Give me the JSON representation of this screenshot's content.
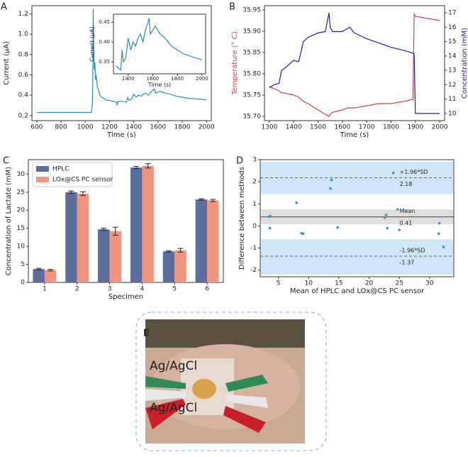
{
  "chart_data": [
    {
      "type": "line",
      "panel": "A",
      "x_label": "Time (s)",
      "y_label": "Current (μA)",
      "xlim": [
        560,
        2040
      ],
      "xticks": [
        600,
        800,
        1000,
        1200,
        1400,
        1600,
        1800,
        2000
      ],
      "ylim": [
        0.15,
        1.28
      ],
      "yticks": [
        0.2,
        0.4,
        0.6,
        0.8,
        {
          "value": 1,
          "label": "1.0"
        },
        1.2
      ],
      "x": [
        600,
        700,
        800,
        900,
        1000,
        1050,
        1058,
        1062,
        1066,
        1070,
        1075,
        1080,
        1085,
        1090,
        1100,
        1110,
        1120,
        1140,
        1160,
        1180,
        1200,
        1230,
        1260,
        1262,
        1270,
        1300,
        1340,
        1350,
        1360,
        1380,
        1400,
        1420,
        1440,
        1460,
        1480,
        1500,
        1520,
        1540,
        1560,
        1570,
        1580,
        1600,
        1620,
        1640,
        1660,
        1700,
        1750,
        1800,
        1850,
        1900,
        1950,
        2000
      ],
      "series": [
        {
          "color": "#2b8cbe",
          "values": [
            0.23,
            0.23,
            0.23,
            0.23,
            0.23,
            0.23,
            0.3,
            0.5,
            1.25,
            0.8,
            0.65,
            0.72,
            0.55,
            0.6,
            0.48,
            0.45,
            0.4,
            0.38,
            0.36,
            0.35,
            0.35,
            0.34,
            0.33,
            0.3,
            0.34,
            0.34,
            0.33,
            0.38,
            0.35,
            0.36,
            0.41,
            0.38,
            0.4,
            0.39,
            0.41,
            0.42,
            0.4,
            0.43,
            0.45,
            0.46,
            0.42,
            0.43,
            0.44,
            0.43,
            0.42,
            0.41,
            0.39,
            0.38,
            0.37,
            0.365,
            0.36,
            0.355
          ]
        }
      ]
    },
    {
      "type": "line",
      "x_label": "Time (s)",
      "y_label": "Current (μA)",
      "xlim": [
        1280,
        2030
      ],
      "xticks": [
        1400,
        1600,
        1800,
        2000
      ],
      "ylim": [
        0.32,
        0.47
      ],
      "yticks": [
        0.35,
        {
          "value": 0.4,
          "label": "0.40"
        },
        0.45
      ],
      "x": [
        1300,
        1320,
        1340,
        1350,
        1360,
        1380,
        1400,
        1420,
        1440,
        1460,
        1480,
        1500,
        1520,
        1540,
        1560,
        1570,
        1580,
        1600,
        1620,
        1640,
        1660,
        1700,
        1750,
        1800,
        1850,
        1900,
        1950,
        2000
      ],
      "series": [
        {
          "color": "#2b8cbe",
          "values": [
            0.34,
            0.335,
            0.33,
            0.38,
            0.35,
            0.36,
            0.41,
            0.38,
            0.4,
            0.39,
            0.41,
            0.42,
            0.4,
            0.43,
            0.45,
            0.46,
            0.42,
            0.43,
            0.44,
            0.43,
            0.42,
            0.41,
            0.39,
            0.38,
            0.37,
            0.365,
            0.36,
            0.355
          ]
        }
      ]
    },
    {
      "type": "line",
      "panel": "B",
      "x_label": "Time (s)",
      "y_label": "Temperature (° C)",
      "y2_label": "Concentration (mM)",
      "xlim": [
        1280,
        2020
      ],
      "xticks": [
        1300,
        1400,
        1500,
        1600,
        1700,
        1800,
        1900,
        2000
      ],
      "ylim": [
        35.69,
        35.96
      ],
      "yticks": [
        {
          "value": 35.7,
          "label": "35.70"
        },
        35.75,
        {
          "value": 35.8,
          "label": "35.80"
        },
        35.85,
        {
          "value": 35.9,
          "label": "35.90"
        },
        35.95
      ],
      "y2lim": [
        9.5,
        17.5
      ],
      "y2ticks": [
        10,
        11,
        12,
        13,
        14,
        15,
        16,
        17
      ],
      "x": [
        1300,
        1320,
        1340,
        1350,
        1360,
        1400,
        1420,
        1440,
        1460,
        1500,
        1530,
        1545,
        1550,
        1560,
        1600,
        1620,
        1630,
        1650,
        1700,
        1750,
        1800,
        1850,
        1890,
        1895,
        1900,
        1950,
        2000
      ],
      "series": [
        {
          "color": "#d0404f",
          "values": [
            35.77,
            35.765,
            35.76,
            35.755,
            35.755,
            35.75,
            35.745,
            35.735,
            35.73,
            35.715,
            35.705,
            35.7,
            35.705,
            35.71,
            35.715,
            35.72,
            35.72,
            35.72,
            35.725,
            35.73,
            35.73,
            35.735,
            35.74,
            35.94,
            35.935,
            35.93,
            35.925
          ]
        },
        {
          "color": "#1f1fa8",
          "axis": "y2",
          "values": [
            11.8,
            12,
            12.1,
            13,
            13.1,
            13.7,
            13.6,
            15,
            15.3,
            15.6,
            15.7,
            17,
            16,
            15.7,
            15.7,
            15.9,
            16,
            15.6,
            15.2,
            14.9,
            14.6,
            14.4,
            14.2,
            14.1,
            10,
            10,
            10
          ]
        }
      ]
    },
    {
      "type": "bar",
      "panel": "C",
      "x_label": "Specimen",
      "y_label": "Concentration of Lactate (mM)",
      "categories": [
        "1",
        "2",
        "3",
        "4",
        "5",
        "6"
      ],
      "ylim": [
        0,
        34
      ],
      "yticks": [
        0,
        5,
        10,
        15,
        20,
        25,
        30
      ],
      "legend": "upper-left",
      "series": [
        {
          "name": "HPLC",
          "color": "#5b6e9e",
          "values": [
            3.7,
            25,
            14.7,
            31.8,
            8.6,
            23
          ],
          "errors": [
            0.2,
            0.3,
            0.3,
            0.3,
            0.2,
            0.2
          ]
        },
        {
          "name": "LOx@CS PC sensor",
          "color": "#ee9680",
          "values": [
            3.4,
            24.6,
            14.2,
            32.3,
            8.9,
            22.7
          ],
          "errors": [
            0.2,
            0.5,
            1.1,
            0.6,
            0.5,
            0.3
          ]
        }
      ]
    },
    {
      "type": "scatter",
      "panel": "D",
      "x_label": "Mean of HPLC and LOx@CS PC sensor",
      "y_label": "Difference between methods",
      "xlim": [
        2,
        34
      ],
      "xticks": [
        5,
        10,
        15,
        20,
        25,
        30
      ],
      "ylim": [
        -2.3,
        3
      ],
      "yticks": [
        -2,
        -1,
        0,
        1,
        2,
        3
      ],
      "color": "#3a8fc4",
      "x": [
        3.5,
        3.7,
        3.6,
        8,
        8.8,
        9.1,
        13.6,
        13.8,
        14.8,
        22.6,
        22.8,
        23,
        24,
        24.7,
        25,
        31.5,
        31.6,
        32.3
      ],
      "values": [
        0.42,
        0.45,
        -0.1,
        1.05,
        -0.33,
        -0.35,
        1.7,
        2.08,
        -0.07,
        0.38,
        0.5,
        -0.1,
        2.4,
        0.75,
        -0.18,
        -0.35,
        0.12,
        -0.95
      ],
      "ref_lines": [
        {
          "label": "+1.96*SD",
          "value": 2.18,
          "band": [
            1.45,
            2.9
          ],
          "band_color": "#cfe6f7"
        },
        {
          "label": "Mean",
          "value": 0.41,
          "band": [
            0.08,
            0.75
          ],
          "band_color": "#dedede"
        },
        {
          "label": "-1.96*SD",
          "value": -1.37,
          "band": [
            -2.2,
            -0.6
          ],
          "band_color": "#cfe6f7"
        }
      ]
    }
  ],
  "photo": {
    "panel": "E",
    "labels": [
      "Ag/AgCl",
      "Ag/AgCl"
    ]
  }
}
